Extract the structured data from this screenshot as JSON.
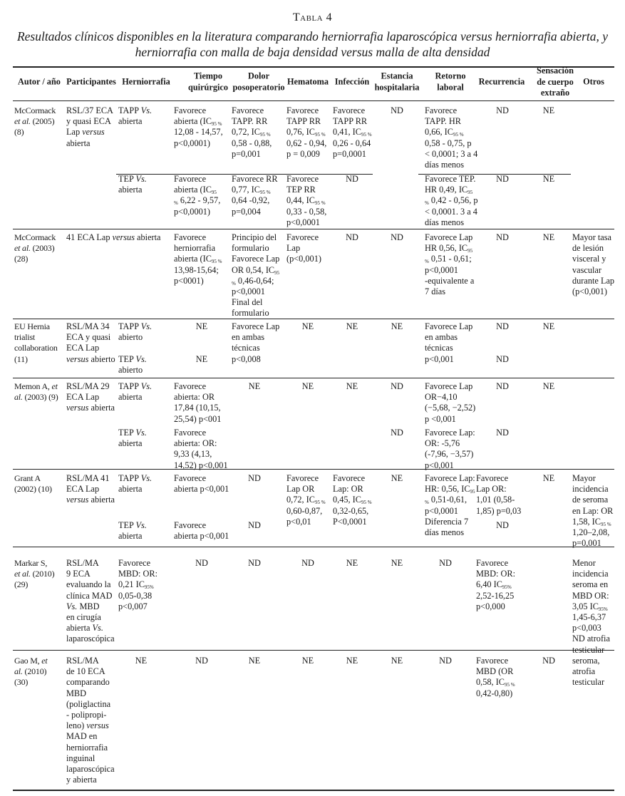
{
  "table": {
    "label": "Tabla 4",
    "caption": "Resultados clínicos disponibles en la literatura comparando herniorrafia laparoscópica versus herniorrafia abierta, y herniorrafia con malla de baja densidad versus malla de alta densidad",
    "headers": {
      "autor": "Autor / año",
      "participantes": "Participantes",
      "herniorrafia": "Herniorrafia",
      "tiempo": "Tiempo\nquirúrgico",
      "dolor": "Dolor\nposoperatorio",
      "hematoma": "Hematoma",
      "infeccion": "Infección",
      "estancia": "Estancia\nhospitalaria",
      "retorno": "Retorno\nlaboral",
      "recurrencia": "Recurrencia",
      "sensacion": "Sensación\nde cuerpo\nextraño",
      "otros": "Otros"
    },
    "rows": [
      {
        "autor": "McCormack\n*et al.* (2005)\n(8)",
        "participantes": "RSL/37 ECA\ny quasi ECA\nLap *versus*\nabierta",
        "otros": "",
        "sub": [
          {
            "herniorrafia": "TAPP *Vs.*\nabierta",
            "tiempo": "Favorece\nabierta (IC{95 %}\n12,08 - 14,57,\np<0,0001)",
            "dolor": "Favorece\nTAPP. RR\n0,72, IC{95 %}\n0,58 - 0,88,\np=0,001",
            "hematoma": "Favorece\nTAPP RR\n0,76, IC{95 %}\n0,62 - 0,94,\np = 0,009",
            "infeccion": "Favorece\nTAPP RR\n0,41, IC{95 %}\n0,26 - 0,64\np=0,0001",
            "estancia": "ND",
            "retorno": "Favorece\nTAPP. HR\n0,66, IC{95 %}\n0,58 - 0,75, p\n< 0,0001; 3 a 4\ndías menos",
            "recurrencia": "ND",
            "sensacion": "NE"
          },
          {
            "herniorrafia": "TEP *Vs.*\nabierta",
            "tiempo": "Favorece\nabierta (IC{95}\n{%} 6,22 - 9,57,\np<0,0001)",
            "dolor": "Favorece RR\n0,77, IC{95 %}\n0,64 -0,92,\np=0,004",
            "hematoma": "Favorece\nTEP RR\n0,44, IC{95 %}\n0,33 - 0,58,\np<0,0001",
            "infeccion": "ND",
            "estancia": "",
            "retorno": "Favorece TEP.\nHR 0,49, IC{95}\n{%} 0,42 - 0,56, p\n< 0,0001. 3 a 4\ndías menos",
            "recurrencia": "ND",
            "sensacion": "NE"
          }
        ]
      },
      {
        "autor": "McCormack\n*et al.* (2003)\n(28)",
        "participantes": "41 ECA Lap *versus* abierta",
        "otros": "Mayor tasa\nde lesión\nvisceral y\nvascular\ndurante Lap\n(p<0,001)",
        "sub": [
          {
            "herniorrafia": "",
            "tiempo": "Favorece\nherniorrafia\nabierta (IC{95 %}\n13,98-15,64;\np<0001)",
            "dolor": "Principio del\nformulario\nFavorece Lap\nOR 0,54, IC{95}\n{%} 0,46-0,64;\np<0,0001\nFinal del\nformulario",
            "hematoma": "Favorece\nLap\n(p<0,001)",
            "infeccion": "ND",
            "estancia": "ND",
            "retorno": "Favorece Lap\nHR 0,56, IC{95}\n{%} 0,51 - 0,61;\np<0,0001\n-equivalente a\n7 días",
            "recurrencia": "ND",
            "sensacion": "NE"
          }
        ]
      },
      {
        "autor": "EU Hernia\ntrialist\ncollaboration\n(11)",
        "participantes": "RSL/MA 34\nECA y quasi\nECA Lap\n*versus* abierto",
        "otros": "",
        "sub": [
          {
            "herniorrafia": "TAPP *Vs.*\nabierto",
            "tiempo": "NE",
            "dolor": "Favorece Lap\nen ambas\ntécnicas\np<0,008",
            "hematoma": "NE",
            "infeccion": "NE",
            "estancia": "NE",
            "retorno": "Favorece Lap\nen ambas\ntécnicas\np<0,001",
            "recurrencia": "ND",
            "sensacion": "NE"
          },
          {
            "herniorrafia": "TEP *Vs.*\nabierto",
            "tiempo": "NE",
            "dolor": "",
            "hematoma": "",
            "infeccion": "",
            "estancia": "",
            "retorno": "",
            "recurrencia": "ND",
            "sensacion": ""
          }
        ]
      },
      {
        "autor": "Memon A, *et*\n*al.* (2003) (9)",
        "participantes": "RSL/MA 29\nECA Lap\n*versus* abierta",
        "otros": "",
        "sub": [
          {
            "herniorrafia": "TAPP *Vs.*\nabierta",
            "tiempo": "Favorece\nabierta: OR\n17,84 (10,15,\n25,54) p<001",
            "dolor": "NE",
            "hematoma": "NE",
            "infeccion": "NE",
            "estancia": "ND",
            "retorno": "Favorece Lap\nOR−4,10\n(−5,68, −2,52)\np <0,001",
            "recurrencia": "ND",
            "sensacion": "NE"
          },
          {
            "herniorrafia": "TEP *Vs.*\nabierta",
            "tiempo": "Favorece\nabierta: OR:\n9,33 (4,13,\n14,52) p<0,001",
            "dolor": "",
            "hematoma": "",
            "infeccion": "",
            "estancia": "ND",
            "retorno": "Favorece Lap:\nOR: -5,76\n(-7,96, −3,57)\np<0,001",
            "recurrencia": "ND",
            "sensacion": ""
          }
        ]
      },
      {
        "autor": "Grant A\n(2002) (10)",
        "participantes": "RSL/MA 41\nECA Lap\n*versus* abierta",
        "otros": "Mayor\nincidencia\nde seroma\nen Lap: OR\n1,58, IC{95 %}\n1,20–2,08,\np=0,001",
        "sub": [
          {
            "herniorrafia": "TAPP *Vs.*\nabierta",
            "tiempo": "Favorece\nabierta p<0,001",
            "dolor": "ND",
            "hematoma": "Favorece\nLap OR\n0,72, IC{95 %}\n0,60-0,87,\np<0,01",
            "infeccion": "Favorece\nLap: OR\n0,45, IC{95 %}\n0,32-0,65,\nP<0,0001",
            "estancia": "NE",
            "retorno": "Favorece Lap:\nHR: 0,56, IC{95}\n{%} 0,51-0,61,\np<0,0001\nDiferencia 7\ndías menos",
            "recurrencia": "Favorece\nLap OR:\n1,01 (0,58-\n1,85) p=0,03",
            "sensacion": "NE"
          },
          {
            "herniorrafia": "TEP *Vs.*\nabierta",
            "tiempo": "Favorece\nabierta p<0,001",
            "dolor": "ND",
            "hematoma": "",
            "infeccion": "",
            "estancia": "",
            "retorno": "",
            "recurrencia": "ND",
            "sensacion": ""
          }
        ]
      },
      {
        "autor": "Markar S,\n*et al.* (2010)\n(29)",
        "participantes": "RSL/MA\n9 ECA\nevaluando la\nclínica MAD\n*Vs.* MBD\nen cirugía\nabierta *Vs.*\nlaparoscópica",
        "otros": "Menor\nincidencia\nseroma en\nMBD OR:\n3,05 IC{95%}\n1,45-6,37\np<0,003\nND atrofia\ntesticular",
        "sub": [
          {
            "herniorrafia": "Favorece\nMBD: OR:\n0,21 IC{95%}\n0,05-0,38\np<0,007",
            "tiempo": "ND",
            "dolor": "ND",
            "hematoma": "ND",
            "infeccion": "NE",
            "estancia": "NE",
            "retorno": "ND",
            "recurrencia": "Favorece\nMBD: OR:\n6,40 IC{95%}\n2,52-16,25\np<0,000",
            "sensacion": ""
          }
        ]
      },
      {
        "autor": "Gao M, *et*\n*al.* (2010)\n(30)",
        "participantes": "RSL/MA\nde 10 ECA\ncomparando\nMBD\n(poliglactina\n- polipropi-\nleno) *versus*\nMAD en\nherniorrafia\ninguinal\nlaparoscópica\ny abierta",
        "otros": "seroma,\natrofia\ntesticular",
        "sub": [
          {
            "herniorrafia": "NE",
            "tiempo": "ND",
            "dolor": "NE",
            "hematoma": "NE",
            "infeccion": "NE",
            "estancia": "NE",
            "retorno": "ND",
            "recurrencia": "Favorece\nMBD (OR\n0,58, IC{95 %}\n0,42-0,80)",
            "sensacion": "ND"
          }
        ]
      }
    ]
  }
}
